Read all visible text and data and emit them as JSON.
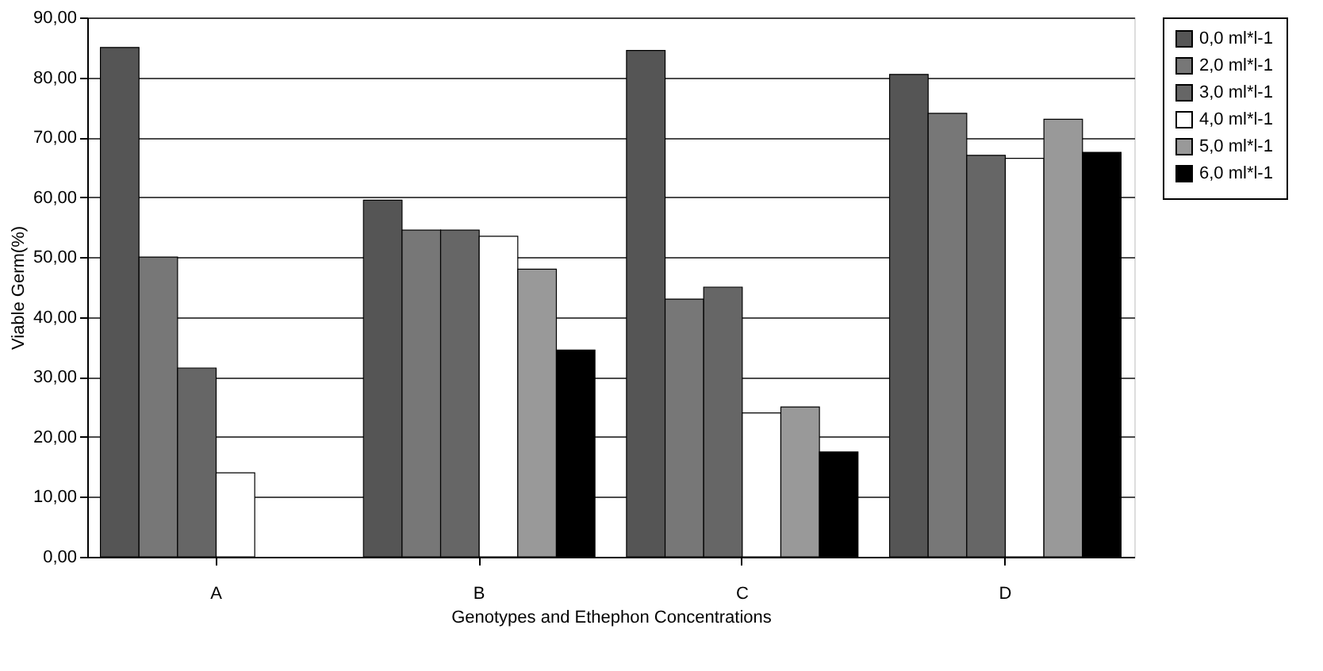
{
  "chart_data": {
    "type": "bar",
    "xlabel": "Genotypes and Ethephon Concentrations",
    "ylabel": "Viable Germ(%)",
    "categories": [
      "A",
      "B",
      "C",
      "D"
    ],
    "series": [
      {
        "name": "0,0 ml*l-1",
        "color": "#555555",
        "values": [
          85,
          59.5,
          84.5,
          80.5
        ]
      },
      {
        "name": "2,0 ml*l-1",
        "color": "#777777",
        "values": [
          50,
          54.5,
          43,
          74
        ]
      },
      {
        "name": "3,0 ml*l-1",
        "color": "#666666",
        "values": [
          31.5,
          54.5,
          45,
          67
        ]
      },
      {
        "name": "4,0 ml*l-1",
        "color": "#ffffff",
        "values": [
          14,
          53.5,
          24,
          66.5
        ]
      },
      {
        "name": "5,0 ml*l-1",
        "color": "#999999",
        "values": [
          null,
          48,
          25,
          73
        ]
      },
      {
        "name": "6,0 ml*l-1",
        "color": "#000000",
        "values": [
          null,
          34.5,
          17.5,
          67.5
        ]
      }
    ],
    "ylim": [
      0,
      90
    ],
    "yticks": [
      {
        "value": 0,
        "label": "0,00"
      },
      {
        "value": 10,
        "label": "10,00"
      },
      {
        "value": 20,
        "label": "20,00"
      },
      {
        "value": 30,
        "label": "30,00"
      },
      {
        "value": 40,
        "label": "40,00"
      },
      {
        "value": 50,
        "label": "50,00"
      },
      {
        "value": 60,
        "label": "60,00"
      },
      {
        "value": 70,
        "label": "70,00"
      },
      {
        "value": 80,
        "label": "80,00"
      },
      {
        "value": 90,
        "label": "90,00"
      }
    ],
    "grid": "y",
    "legend": "right"
  }
}
